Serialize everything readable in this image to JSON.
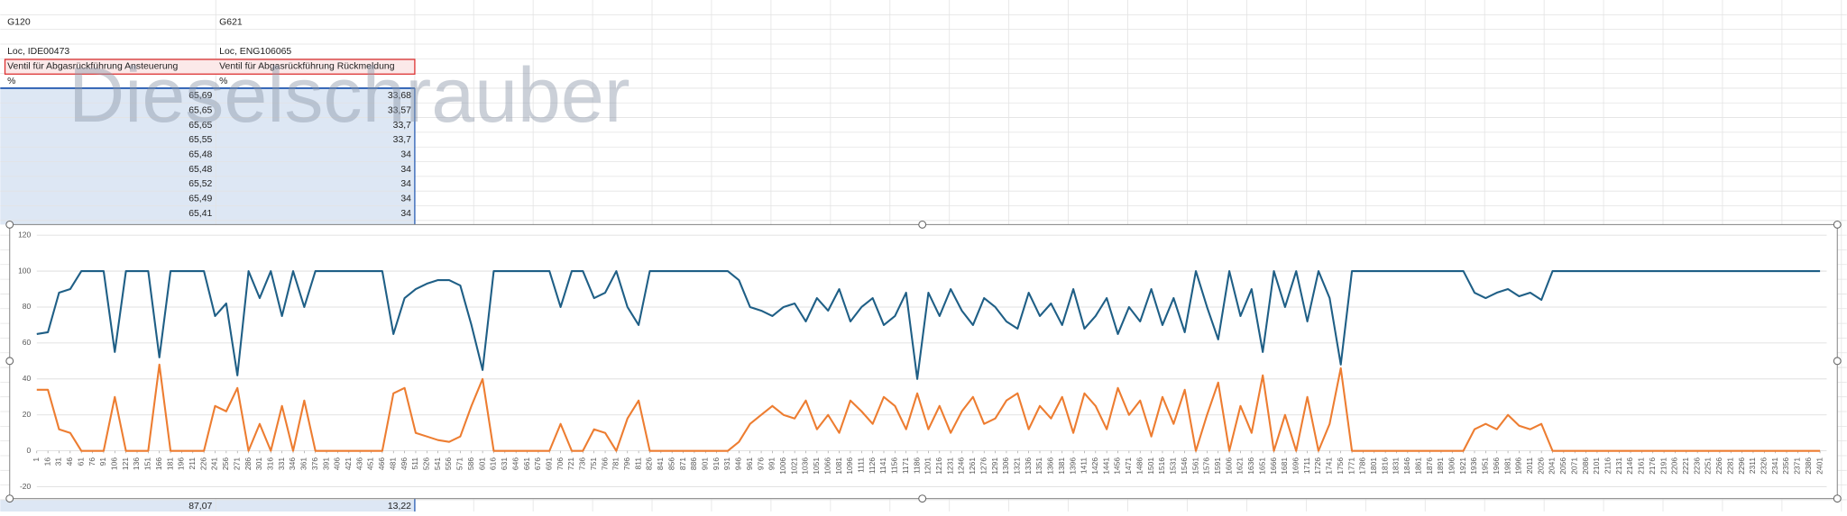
{
  "sheet": {
    "rows": [
      [
        "G120",
        "G621"
      ],
      [
        "Loc, IDE00473",
        "Loc, ENG106065"
      ],
      [
        "Ventil für Abgasrückführung Ansteuerung",
        "Ventil für Abgasrückführung Rückmeldung"
      ],
      [
        "%",
        "%"
      ]
    ],
    "data": [
      [
        "65,69",
        "33,68"
      ],
      [
        "65,65",
        "33,57"
      ],
      [
        "65,65",
        "33,7"
      ],
      [
        "65,55",
        "33,7"
      ],
      [
        "65,48",
        "34"
      ],
      [
        "65,48",
        "34"
      ],
      [
        "65,52",
        "34"
      ],
      [
        "65,49",
        "34"
      ],
      [
        "65,41",
        "34"
      ]
    ],
    "total": [
      "87,07",
      "13,22"
    ],
    "watermark": "Dieselschrauber"
  },
  "chart_data": {
    "type": "line",
    "x": [
      1,
      16,
      31,
      46,
      61,
      76,
      91,
      106,
      121,
      136,
      151,
      166,
      181,
      196,
      211,
      226,
      241,
      256,
      271,
      286,
      301,
      316,
      331,
      346,
      361,
      376,
      391,
      406,
      421,
      436,
      451,
      466,
      481,
      496,
      511,
      526,
      541,
      556,
      571,
      586,
      601,
      616,
      631,
      646,
      661,
      676,
      691,
      706,
      721,
      736,
      751,
      766,
      781,
      796,
      811,
      826,
      841,
      856,
      871,
      886,
      901,
      916,
      931,
      946,
      961,
      976,
      991,
      1006,
      1021,
      1036,
      1051,
      1066,
      1081,
      1096,
      1111,
      1126,
      1141,
      1156,
      1171,
      1186,
      1201,
      1216,
      1231,
      1246,
      1261,
      1276,
      1291,
      1306,
      1321,
      1336,
      1351,
      1366,
      1381,
      1396,
      1411,
      1426,
      1441,
      1456,
      1471,
      1486,
      1501,
      1516,
      1531,
      1546,
      1561,
      1576,
      1591,
      1606,
      1621,
      1636,
      1651,
      1666,
      1681,
      1696,
      1711,
      1726,
      1741,
      1756,
      1771,
      1786,
      1801,
      1816,
      1831,
      1846,
      1861,
      1876,
      1891,
      1906,
      1921,
      1936,
      1951,
      1966,
      1981,
      1996,
      2011,
      2026,
      2041,
      2056,
      2071,
      2086,
      2101,
      2116,
      2131,
      2146,
      2161,
      2176,
      2191,
      2206,
      2221,
      2236,
      2251,
      2266,
      2281,
      2296,
      2311,
      2326,
      2341,
      2356,
      2371,
      2386,
      2401
    ],
    "xticks": [
      1,
      16,
      31,
      46,
      61,
      76,
      91,
      106,
      121,
      136,
      151,
      166,
      181,
      196,
      211,
      226,
      241,
      256,
      271,
      286,
      301,
      316,
      331,
      346,
      361,
      376,
      391,
      406,
      421,
      436,
      451,
      466,
      481,
      496,
      511,
      526,
      541,
      556,
      571,
      586,
      601,
      616,
      631,
      646,
      661,
      676,
      691,
      706,
      721,
      736,
      751,
      766,
      781,
      796,
      811,
      826,
      841,
      856,
      871,
      886,
      901,
      916,
      931,
      946,
      961,
      976,
      991,
      1006,
      1021,
      1036,
      1051,
      1066,
      1081,
      1096,
      1111,
      1126,
      1141,
      1156,
      1171,
      1186,
      1201,
      1216,
      1231,
      1246,
      1261,
      1276,
      1291,
      1306,
      1321,
      1336,
      1351,
      1366,
      1381,
      1396,
      1411,
      1426,
      1441,
      1456,
      1471,
      1486,
      1501,
      1516,
      1531,
      1546,
      1561,
      1576,
      1591,
      1606,
      1621,
      1636,
      1651,
      1666,
      1681,
      1696,
      1711,
      1726,
      1741,
      1756,
      1771,
      1786,
      1801,
      1816,
      1831,
      1846,
      1861,
      1876,
      1891,
      1906,
      1921,
      1936,
      1951,
      1966,
      1981,
      1996,
      2011,
      2026,
      2041,
      2056,
      2071,
      2086,
      2101,
      2116,
      2131,
      2146,
      2161,
      2176,
      2191,
      2206,
      2221,
      2236,
      2251,
      2266,
      2281,
      2296,
      2311,
      2326,
      2341,
      2356,
      2371,
      2386,
      2401
    ],
    "xlim": [
      1,
      2410
    ],
    "ylim": [
      -20,
      120
    ],
    "yticks": [
      -20,
      0,
      20,
      40,
      60,
      80,
      100,
      120
    ],
    "grid": true,
    "series": [
      {
        "color": "#1f5f86",
        "values": [
          65,
          66,
          88,
          90,
          100,
          100,
          100,
          55,
          100,
          100,
          100,
          52,
          100,
          100,
          100,
          100,
          75,
          82,
          42,
          100,
          85,
          100,
          75,
          100,
          80,
          100,
          100,
          100,
          100,
          100,
          100,
          100,
          65,
          85,
          90,
          93,
          95,
          95,
          92,
          70,
          45,
          100,
          100,
          100,
          100,
          100,
          100,
          80,
          100,
          100,
          85,
          88,
          100,
          80,
          70,
          100,
          100,
          100,
          100,
          100,
          100,
          100,
          100,
          95,
          80,
          78,
          75,
          80,
          82,
          72,
          85,
          78,
          90,
          72,
          80,
          85,
          70,
          75,
          88,
          40,
          88,
          75,
          90,
          78,
          70,
          85,
          80,
          72,
          68,
          88,
          75,
          82,
          70,
          90,
          68,
          75,
          85,
          65,
          80,
          72,
          90,
          70,
          85,
          66,
          100,
          80,
          62,
          100,
          75,
          90,
          55,
          100,
          80,
          100,
          72,
          100,
          85,
          48,
          100,
          100,
          100,
          100,
          100,
          100,
          100,
          100,
          100,
          100,
          100,
          88,
          85,
          88,
          90,
          86,
          88,
          84,
          100,
          100,
          100,
          100,
          100,
          100,
          100,
          100,
          100,
          100,
          100,
          100,
          100,
          100,
          100,
          100,
          100,
          100,
          100,
          100,
          100,
          100,
          100,
          100,
          100
        ]
      },
      {
        "color": "#ed7d31",
        "values": [
          34,
          34,
          12,
          10,
          0,
          0,
          0,
          30,
          0,
          0,
          0,
          48,
          0,
          0,
          0,
          0,
          25,
          22,
          35,
          0,
          15,
          0,
          25,
          0,
          28,
          0,
          0,
          0,
          0,
          0,
          0,
          0,
          32,
          35,
          10,
          8,
          6,
          5,
          8,
          25,
          40,
          0,
          0,
          0,
          0,
          0,
          0,
          15,
          0,
          0,
          12,
          10,
          0,
          18,
          28,
          0,
          0,
          0,
          0,
          0,
          0,
          0,
          0,
          5,
          15,
          20,
          25,
          20,
          18,
          28,
          12,
          20,
          10,
          28,
          22,
          15,
          30,
          25,
          12,
          32,
          12,
          25,
          10,
          22,
          30,
          15,
          18,
          28,
          32,
          12,
          25,
          18,
          30,
          10,
          32,
          25,
          12,
          35,
          20,
          28,
          8,
          30,
          15,
          34,
          0,
          20,
          38,
          0,
          25,
          10,
          42,
          0,
          20,
          0,
          30,
          0,
          15,
          46,
          0,
          0,
          0,
          0,
          0,
          0,
          0,
          0,
          0,
          0,
          0,
          12,
          15,
          12,
          20,
          14,
          12,
          15,
          0,
          0,
          0,
          0,
          0,
          0,
          0,
          0,
          0,
          0,
          0,
          0,
          0,
          0,
          0,
          0,
          0,
          0,
          0,
          0,
          0,
          0,
          0,
          0,
          0
        ]
      }
    ]
  }
}
